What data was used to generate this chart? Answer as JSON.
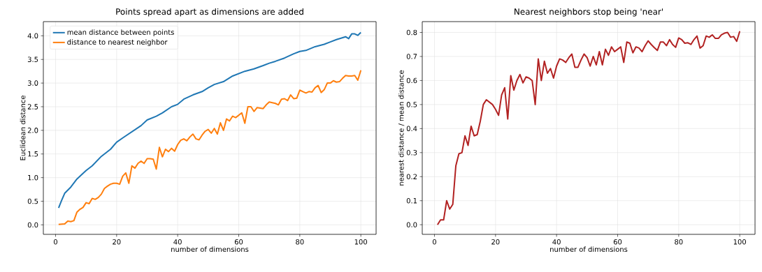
{
  "chart_data": [
    {
      "type": "line",
      "title": "Points spread apart as dimensions are added",
      "xlabel": "number of dimensions",
      "ylabel": "Euclidean distance",
      "xlim": [
        -4,
        105
      ],
      "ylim": [
        -0.2,
        4.3
      ],
      "xticks": [
        0,
        20,
        40,
        60,
        80,
        100
      ],
      "yticks": [
        {
          "value": 0,
          "label": "0.0"
        },
        0.5,
        {
          "value": 1,
          "label": "1.0"
        },
        1.5,
        {
          "value": 2,
          "label": "2.0"
        },
        2.5,
        {
          "value": 3,
          "label": "3.0"
        },
        3.5,
        {
          "value": 4,
          "label": "4.0"
        }
      ],
      "grid": true,
      "legend": "top left",
      "series": [
        {
          "name": "mean distance between points",
          "color": "#1f77b4",
          "x": [
            1,
            2,
            3,
            5,
            7,
            10,
            12,
            15,
            18,
            20,
            22,
            25,
            28,
            30,
            33,
            35,
            38,
            40,
            42,
            45,
            48,
            50,
            52,
            55,
            58,
            60,
            62,
            65,
            68,
            70,
            72,
            75,
            78,
            80,
            82,
            85,
            88,
            90,
            92,
            95,
            96,
            97,
            98,
            99,
            100
          ],
          "values": [
            0.36,
            0.52,
            0.67,
            0.8,
            0.97,
            1.15,
            1.25,
            1.45,
            1.6,
            1.75,
            1.84,
            1.97,
            2.1,
            2.22,
            2.3,
            2.37,
            2.5,
            2.55,
            2.66,
            2.75,
            2.82,
            2.9,
            2.97,
            3.03,
            3.15,
            3.2,
            3.25,
            3.3,
            3.37,
            3.42,
            3.46,
            3.53,
            3.62,
            3.67,
            3.69,
            3.77,
            3.82,
            3.87,
            3.92,
            3.98,
            3.94,
            4.04,
            4.04,
            4.01,
            4.07
          ]
        },
        {
          "name": "distance to nearest neighbor",
          "color": "#ff7f0e",
          "x": [
            1,
            3,
            4,
            5,
            6,
            7,
            8,
            9,
            10,
            11,
            12,
            13,
            14,
            15,
            16,
            17,
            18,
            19,
            20,
            21,
            22,
            23,
            24,
            25,
            26,
            27,
            28,
            29,
            30,
            31,
            32,
            33,
            34,
            35,
            36,
            37,
            38,
            39,
            40,
            41,
            42,
            43,
            44,
            45,
            46,
            47,
            48,
            49,
            50,
            51,
            52,
            53,
            54,
            55,
            56,
            57,
            58,
            59,
            60,
            61,
            62,
            63,
            64,
            65,
            66,
            67,
            68,
            69,
            70,
            72,
            73,
            74,
            75,
            76,
            77,
            78,
            79,
            80,
            81,
            82,
            83,
            84,
            85,
            86,
            87,
            88,
            89,
            90,
            91,
            92,
            93,
            94,
            95,
            96,
            97,
            98,
            99,
            100
          ],
          "values": [
            0.01,
            0.02,
            0.08,
            0.07,
            0.09,
            0.27,
            0.33,
            0.37,
            0.47,
            0.45,
            0.56,
            0.54,
            0.58,
            0.65,
            0.77,
            0.82,
            0.86,
            0.88,
            0.88,
            0.86,
            1.03,
            1.1,
            0.88,
            1.25,
            1.2,
            1.3,
            1.35,
            1.3,
            1.4,
            1.4,
            1.39,
            1.18,
            1.64,
            1.44,
            1.6,
            1.55,
            1.62,
            1.56,
            1.7,
            1.79,
            1.82,
            1.78,
            1.86,
            1.92,
            1.82,
            1.8,
            1.9,
            1.98,
            2.02,
            1.94,
            2.04,
            1.92,
            2.16,
            2.0,
            2.24,
            2.2,
            2.3,
            2.27,
            2.32,
            2.37,
            2.15,
            2.5,
            2.5,
            2.4,
            2.48,
            2.47,
            2.46,
            2.54,
            2.6,
            2.57,
            2.54,
            2.66,
            2.67,
            2.63,
            2.75,
            2.67,
            2.68,
            2.85,
            2.82,
            2.79,
            2.82,
            2.81,
            2.9,
            2.95,
            2.8,
            2.86,
            3.0,
            3.0,
            3.05,
            3.02,
            3.03,
            3.1,
            3.16,
            3.15,
            3.15,
            3.16,
            3.06,
            3.27
          ]
        }
      ]
    },
    {
      "type": "line",
      "title": "Nearest neighbors stop being 'near'",
      "xlabel": "number of dimensions",
      "ylabel": "nearest distance / mean distance",
      "xlim": [
        -4,
        105
      ],
      "ylim": [
        -0.04,
        0.845
      ],
      "xticks": [
        0,
        20,
        40,
        60,
        80,
        100
      ],
      "yticks": [
        {
          "value": 0,
          "label": "0.0"
        },
        0.1,
        0.2,
        0.3,
        0.4,
        0.5,
        0.6,
        0.7,
        0.8
      ],
      "grid": true,
      "series": [
        {
          "color": "#b22222",
          "x": [
            1,
            2,
            3,
            4,
            5,
            6,
            7,
            8,
            9,
            10,
            11,
            12,
            13,
            14,
            15,
            16,
            17,
            18,
            19,
            20,
            21,
            22,
            23,
            24,
            25,
            26,
            27,
            28,
            29,
            30,
            31,
            32,
            33,
            34,
            35,
            36,
            37,
            38,
            39,
            40,
            41,
            42,
            43,
            44,
            45,
            46,
            47,
            48,
            49,
            50,
            51,
            52,
            53,
            54,
            55,
            56,
            57,
            58,
            59,
            60,
            61,
            62,
            63,
            64,
            65,
            66,
            67,
            68,
            69,
            70,
            71,
            72,
            73,
            74,
            75,
            76,
            77,
            78,
            79,
            80,
            81,
            82,
            83,
            84,
            85,
            86,
            87,
            88,
            89,
            90,
            91,
            92,
            93,
            94,
            95,
            96,
            97,
            98,
            99,
            100
          ],
          "values": [
            0,
            0.02,
            0.02,
            0.1,
            0.065,
            0.085,
            0.245,
            0.295,
            0.3,
            0.37,
            0.33,
            0.41,
            0.37,
            0.375,
            0.43,
            0.5,
            0.52,
            0.51,
            0.5,
            0.48,
            0.455,
            0.54,
            0.57,
            0.44,
            0.62,
            0.56,
            0.6,
            0.625,
            0.59,
            0.615,
            0.61,
            0.6,
            0.5,
            0.69,
            0.6,
            0.68,
            0.63,
            0.65,
            0.61,
            0.66,
            0.69,
            0.685,
            0.675,
            0.695,
            0.71,
            0.655,
            0.655,
            0.685,
            0.71,
            0.695,
            0.66,
            0.7,
            0.665,
            0.72,
            0.665,
            0.73,
            0.705,
            0.74,
            0.72,
            0.73,
            0.74,
            0.675,
            0.76,
            0.755,
            0.715,
            0.74,
            0.735,
            0.72,
            0.745,
            0.765,
            0.75,
            0.737,
            0.725,
            0.76,
            0.76,
            0.745,
            0.77,
            0.75,
            0.738,
            0.777,
            0.77,
            0.755,
            0.757,
            0.75,
            0.77,
            0.785,
            0.735,
            0.745,
            0.785,
            0.78,
            0.79,
            0.775,
            0.775,
            0.79,
            0.797,
            0.8,
            0.78,
            0.783,
            0.763,
            0.805
          ]
        }
      ]
    }
  ]
}
